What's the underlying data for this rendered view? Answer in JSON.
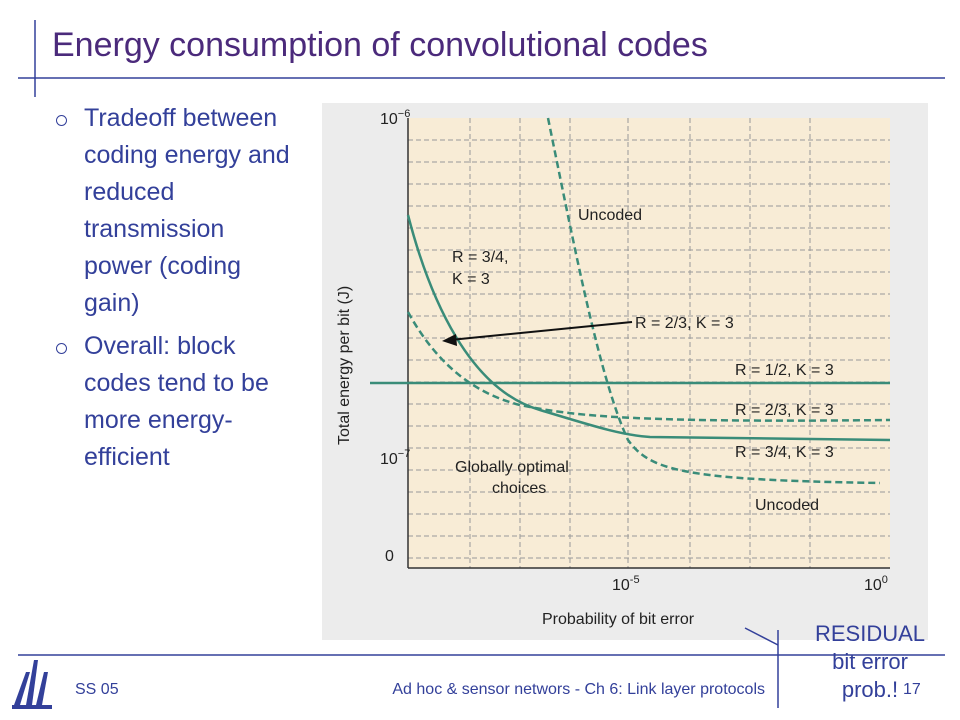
{
  "slide": {
    "title": "Energy consumption of convolutional codes",
    "bullets": [
      "Tradeoff between coding energy and reduced transmission power (coding gain)",
      "Overall: block codes tend to be more energy-efficient"
    ],
    "chart": {
      "y_label": "Total energy per bit (J)",
      "x_label": "Probability of bit error",
      "y_ticks": [
        {
          "base": "10",
          "exp": "−6"
        },
        {
          "base": "10",
          "exp": "−7"
        },
        {
          "base": "0",
          "exp": ""
        }
      ],
      "x_ticks": [
        {
          "base": "10",
          "exp": "-5"
        },
        {
          "base": "10",
          "exp": "0"
        }
      ],
      "curve_labels": [
        "Uncoded",
        "R = 3/4,",
        "K = 3",
        "R = 2/3, K = 3",
        "R = 1/2, K = 3",
        "R = 2/3, K = 3",
        "R = 3/4, K = 3",
        "Globally optimal",
        "choices",
        "Uncoded"
      ]
    },
    "annotation": [
      "RESIDUAL",
      "bit error",
      "prob.!"
    ],
    "footer": {
      "left": "SS 05",
      "center": "Ad hoc & sensor networs - Ch 6: Link layer protocols",
      "page": "17"
    }
  }
}
